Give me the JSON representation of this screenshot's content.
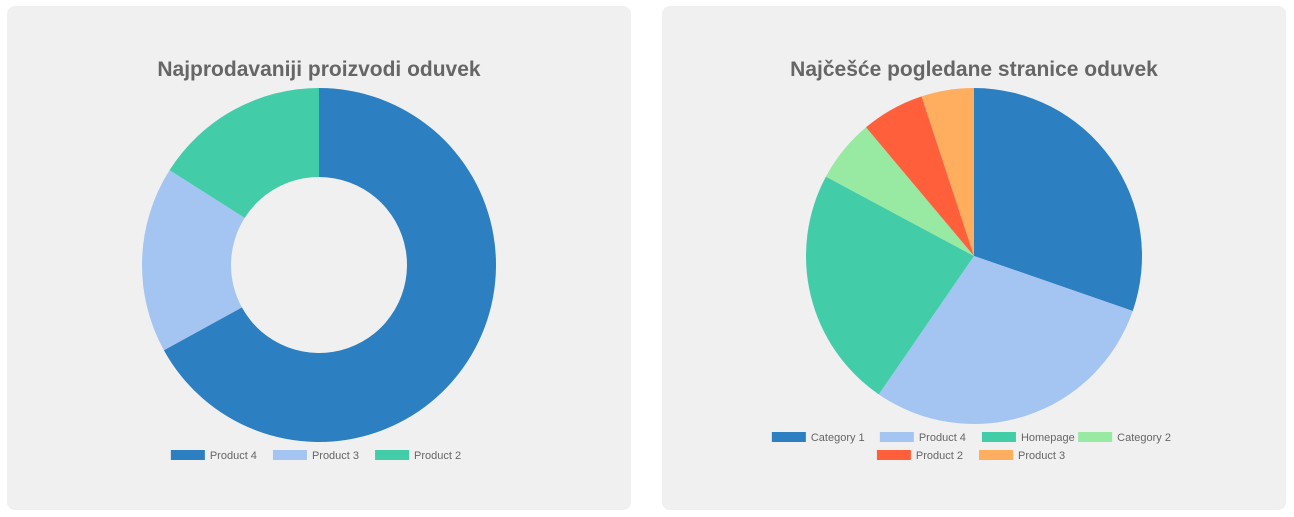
{
  "chart_data": [
    {
      "type": "pie",
      "style": "doughnut",
      "title": "Najprodavaniji proizvodi oduvek",
      "labels": [
        "Product 4",
        "Product 3",
        "Product 2"
      ],
      "values": [
        67,
        17,
        16
      ],
      "colors": [
        "#2c7fc1",
        "#a4c5f2",
        "#42cca8"
      ],
      "legend": "bottom"
    },
    {
      "type": "pie",
      "title": "Najčešće pogledane stranice oduvek",
      "labels": [
        "Category 1",
        "Product 4",
        "Homepage",
        "Category 2",
        "Product 2",
        "Product 3"
      ],
      "values": [
        30,
        29,
        23,
        6,
        6,
        5
      ],
      "colors": [
        "#2c7fc1",
        "#a4c5f2",
        "#42cca8",
        "#98e9a2",
        "#ff5f3a",
        "#feae5e"
      ],
      "legend": "bottom"
    }
  ]
}
